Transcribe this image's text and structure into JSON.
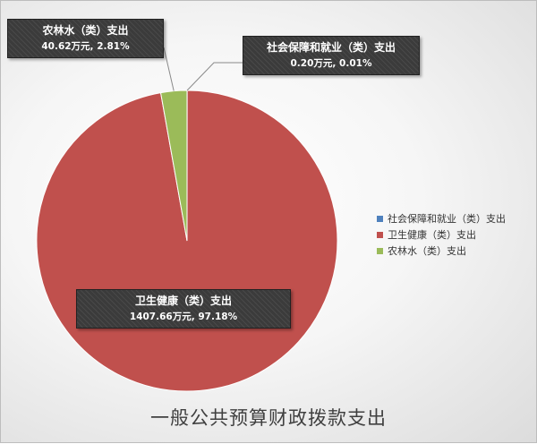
{
  "chart_data": {
    "type": "pie",
    "title": "一般公共预算财政拨款支出",
    "start_angle_deg": 90,
    "direction": "clockwise",
    "slices": [
      {
        "name": "社会保障和就业（类）支出",
        "value": 0.2,
        "unit": "万元",
        "percent": 0.01,
        "color": "#4f81bd",
        "label": "0.20万元, 0.01%"
      },
      {
        "name": "卫生健康（类）支出",
        "value": 1407.66,
        "unit": "万元",
        "percent": 97.18,
        "color": "#c0504d",
        "label": "1407.66万元, 97.18%"
      },
      {
        "name": "农林水（类）支出",
        "value": 40.62,
        "unit": "万元",
        "percent": 2.81,
        "color": "#9bbb59",
        "label": "40.62万元, 2.81%"
      }
    ],
    "legend_position": "right"
  }
}
